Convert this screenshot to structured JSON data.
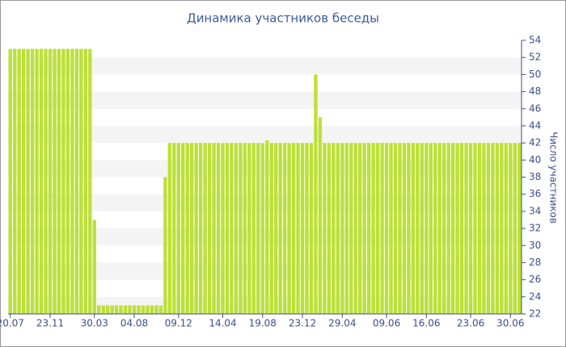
{
  "chart_data": {
    "type": "bar",
    "title": "Динамика участников беседы",
    "y_axis_label": "Число участников",
    "categories": [
      "20.07",
      null,
      null,
      null,
      null,
      null,
      null,
      null,
      null,
      "23.11",
      null,
      null,
      null,
      null,
      null,
      null,
      null,
      null,
      null,
      "30.03",
      null,
      null,
      null,
      null,
      null,
      null,
      null,
      null,
      "04.08",
      null,
      null,
      null,
      null,
      null,
      null,
      null,
      null,
      null,
      "09.12",
      null,
      null,
      null,
      null,
      null,
      null,
      null,
      null,
      null,
      "14.04",
      null,
      null,
      null,
      null,
      null,
      null,
      null,
      null,
      "19.08",
      null,
      null,
      null,
      null,
      null,
      null,
      null,
      null,
      "23.12",
      null,
      null,
      null,
      null,
      null,
      null,
      null,
      null,
      "29.04",
      null,
      null,
      null,
      null,
      null,
      null,
      null,
      null,
      null,
      "09.06",
      null,
      null,
      null,
      null,
      null,
      null,
      null,
      null,
      "16.06",
      null,
      null,
      null,
      null,
      null,
      null,
      null,
      null,
      null,
      "23.06",
      null,
      null,
      null,
      null,
      null,
      null,
      null,
      null,
      "30.06",
      null,
      null
    ],
    "values": [
      53,
      53,
      53,
      53,
      53,
      53,
      53,
      53,
      53,
      53,
      53,
      53,
      53,
      53,
      53,
      53,
      53,
      53,
      53,
      33,
      23,
      23,
      23,
      23,
      23,
      23,
      23,
      23,
      23,
      23,
      23,
      23,
      23,
      23,
      23,
      38,
      42,
      42,
      42,
      42,
      42,
      42,
      42,
      42,
      42,
      42,
      42,
      42,
      42,
      42,
      42,
      42,
      42,
      42,
      42,
      42,
      42,
      42,
      42.3,
      42,
      42,
      42,
      42,
      42,
      42,
      42,
      42,
      42,
      42,
      50,
      45,
      42,
      42,
      42,
      42,
      42,
      42,
      42,
      42,
      42,
      42,
      42,
      42,
      42,
      42,
      42,
      42,
      42,
      42,
      42,
      42,
      42,
      42,
      42,
      42,
      42,
      42,
      42,
      42,
      42,
      42,
      42,
      42,
      42,
      42,
      42,
      42,
      42,
      42,
      42,
      42,
      42,
      42,
      42,
      42,
      42
    ],
    "color": "#bde038",
    "ylim": [
      22,
      54
    ],
    "yticks": [
      22,
      24,
      26,
      28,
      30,
      32,
      34,
      36,
      38,
      40,
      42,
      44,
      46,
      48,
      50,
      52,
      54
    ],
    "grid": "bands"
  }
}
